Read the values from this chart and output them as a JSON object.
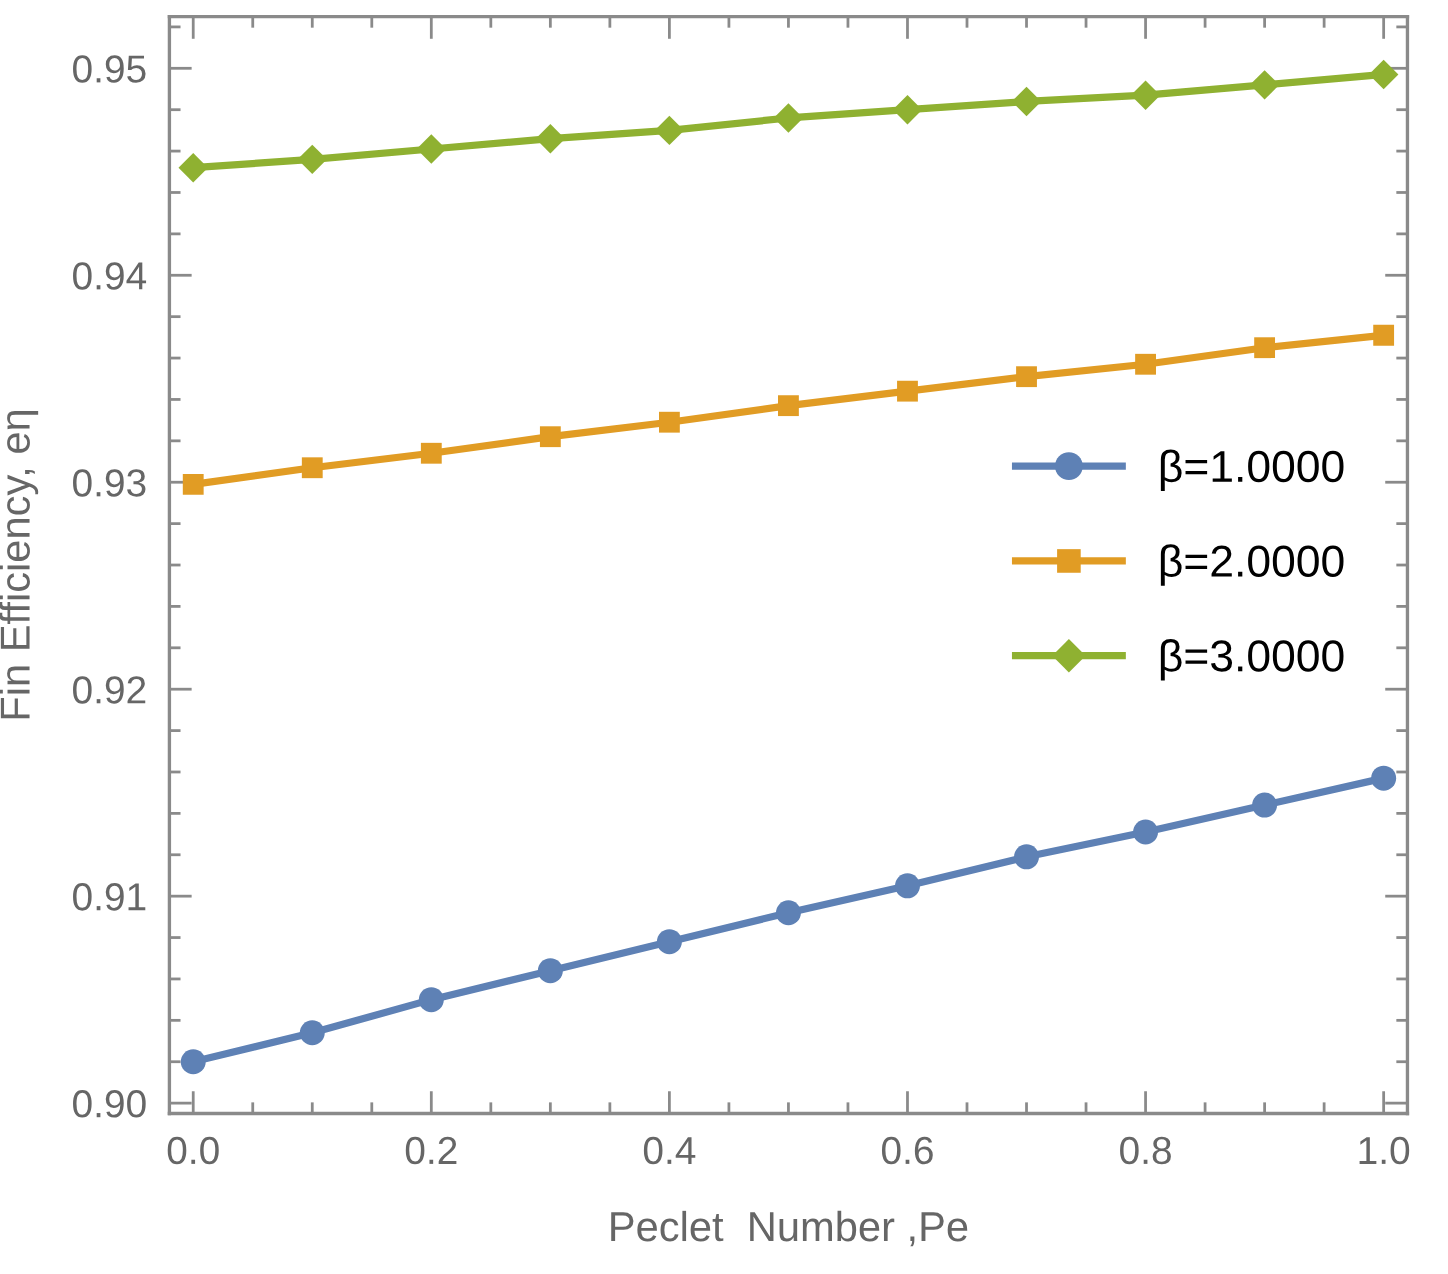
{
  "chart_data": {
    "type": "line",
    "xlabel": "Peclet  Number ,Pe",
    "ylabel": "Fin Efficiency, eη",
    "x": [
      0.0,
      0.1,
      0.2,
      0.3,
      0.4,
      0.5,
      0.6,
      0.7,
      0.8,
      0.9,
      1.0
    ],
    "series": [
      {
        "name": "β=1.0000",
        "color": "#5e81b5",
        "marker": "circle",
        "values": [
          0.902,
          0.9034,
          0.905,
          0.9064,
          0.9078,
          0.9092,
          0.9105,
          0.9119,
          0.9131,
          0.9144,
          0.9157
        ]
      },
      {
        "name": "β=2.0000",
        "color": "#e19c24",
        "marker": "square",
        "values": [
          0.9299,
          0.9307,
          0.9314,
          0.9322,
          0.9329,
          0.9337,
          0.9344,
          0.9351,
          0.9357,
          0.9365,
          0.9371
        ]
      },
      {
        "name": "β=3.0000",
        "color": "#8fb131",
        "marker": "diamond",
        "values": [
          0.9452,
          0.9456,
          0.9461,
          0.9466,
          0.947,
          0.9476,
          0.948,
          0.9484,
          0.9487,
          0.9492,
          0.9497
        ]
      }
    ],
    "line_style": "solid",
    "xlim": [
      -0.02,
      1.02
    ],
    "xticks": [
      {
        "value": 0.0,
        "label": "0.0"
      },
      {
        "value": 0.05,
        "label": null
      },
      {
        "value": 0.1,
        "label": null
      },
      {
        "value": 0.15,
        "label": null
      },
      {
        "value": 0.2,
        "label": "0.2"
      },
      {
        "value": 0.25,
        "label": null
      },
      {
        "value": 0.3,
        "label": null
      },
      {
        "value": 0.35,
        "label": null
      },
      {
        "value": 0.4,
        "label": "0.4"
      },
      {
        "value": 0.45,
        "label": null
      },
      {
        "value": 0.5,
        "label": null
      },
      {
        "value": 0.55,
        "label": null
      },
      {
        "value": 0.6,
        "label": "0.6"
      },
      {
        "value": 0.65,
        "label": null
      },
      {
        "value": 0.7,
        "label": null
      },
      {
        "value": 0.75,
        "label": null
      },
      {
        "value": 0.8,
        "label": "0.8"
      },
      {
        "value": 0.85,
        "label": null
      },
      {
        "value": 0.9,
        "label": null
      },
      {
        "value": 0.95,
        "label": null
      },
      {
        "value": 1.0,
        "label": "1.0"
      }
    ],
    "ylim": [
      0.8995,
      0.9525
    ],
    "yticks": [
      {
        "value": 0.9,
        "label": "0.90"
      },
      {
        "value": 0.902,
        "label": null
      },
      {
        "value": 0.904,
        "label": null
      },
      {
        "value": 0.906,
        "label": null
      },
      {
        "value": 0.908,
        "label": null
      },
      0.91,
      {
        "value": 0.912,
        "label": null
      },
      {
        "value": 0.914,
        "label": null
      },
      {
        "value": 0.916,
        "label": null
      },
      {
        "value": 0.918,
        "label": null
      },
      0.92,
      {
        "value": 0.922,
        "label": null
      },
      {
        "value": 0.924,
        "label": null
      },
      {
        "value": 0.926,
        "label": null
      },
      {
        "value": 0.928,
        "label": null
      },
      0.93,
      {
        "value": 0.932,
        "label": null
      },
      {
        "value": 0.934,
        "label": null
      },
      {
        "value": 0.936,
        "label": null
      },
      {
        "value": 0.938,
        "label": null
      },
      0.94,
      {
        "value": 0.942,
        "label": null
      },
      {
        "value": 0.944,
        "label": null
      },
      {
        "value": 0.946,
        "label": null
      },
      {
        "value": 0.948,
        "label": null
      },
      0.95,
      {
        "value": 0.952,
        "label": null
      }
    ],
    "legend": "right"
  }
}
